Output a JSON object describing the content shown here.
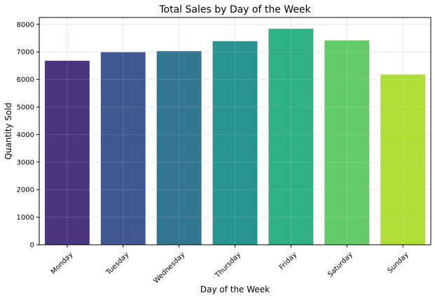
{
  "chart_data": {
    "type": "bar",
    "title": "Total Sales by Day of the Week",
    "xlabel": "Day of the Week",
    "ylabel": "Quantity Sold",
    "categories": [
      "Monday",
      "Tuesday",
      "Wednesday",
      "Thursday",
      "Friday",
      "Saturday",
      "Sunday"
    ],
    "values": [
      6680,
      6990,
      7030,
      7390,
      7840,
      7420,
      6180
    ],
    "colors": [
      "#472d7b",
      "#3b528b",
      "#2c728e",
      "#21918c",
      "#28ae80",
      "#5ec962",
      "#addc30"
    ],
    "ylim": [
      0,
      8250
    ],
    "yticks": [
      0,
      1000,
      2000,
      3000,
      4000,
      5000,
      6000,
      7000,
      8000
    ],
    "grid": true,
    "legend": "none"
  }
}
